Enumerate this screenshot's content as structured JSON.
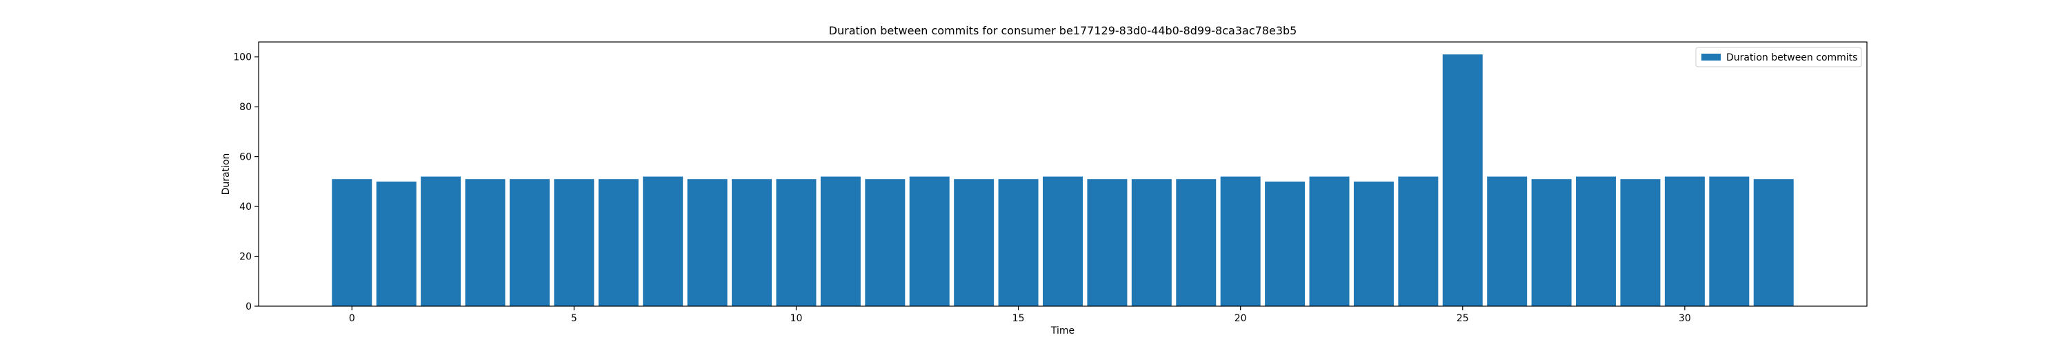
{
  "chart_data": {
    "type": "bar",
    "title": "Duration between commits for consumer be177129-83d0-44b0-8d99-8ca3ac78e3b5",
    "xlabel": "Time",
    "ylabel": "Duration",
    "x": [
      0,
      1,
      2,
      3,
      4,
      5,
      6,
      7,
      8,
      9,
      10,
      11,
      12,
      13,
      14,
      15,
      16,
      17,
      18,
      19,
      20,
      21,
      22,
      23,
      24,
      25,
      26,
      27,
      28,
      29,
      30,
      31,
      32
    ],
    "series": [
      {
        "name": "Duration between commits",
        "color": "#1f77b4",
        "values": [
          51,
          50,
          52,
          51,
          51,
          51,
          51,
          52,
          51,
          51,
          51,
          52,
          51,
          52,
          51,
          51,
          52,
          51,
          51,
          51,
          52,
          50,
          52,
          50,
          52,
          101,
          52,
          51,
          52,
          51,
          52,
          52,
          51
        ]
      }
    ],
    "xlim": [
      -2.1,
      34.1
    ],
    "ylim": [
      0,
      106
    ],
    "xticks": [
      0,
      5,
      10,
      15,
      20,
      25,
      30
    ],
    "yticks": [
      0,
      20,
      40,
      60,
      80,
      100
    ],
    "bar_width": 0.9,
    "grid": false,
    "legend_position": "upper right"
  }
}
